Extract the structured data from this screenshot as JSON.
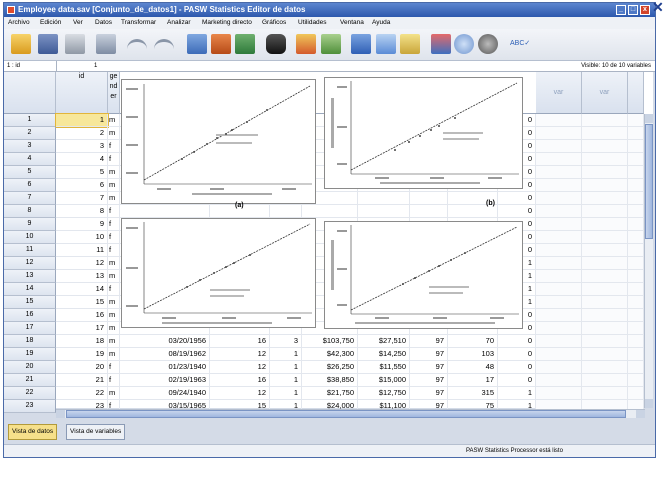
{
  "window": {
    "title": "Employee data.sav [Conjunto_de_datos1] - PASW Statistics Editor de datos"
  },
  "menu": [
    "Archivo",
    "Edición",
    "Ver",
    "Datos",
    "Transformar",
    "Analizar",
    "Marketing directo",
    "Gráficos",
    "Utilidades",
    "Ventana",
    "Ayuda"
  ],
  "cellbar": {
    "ref": "1 : id",
    "value": "1",
    "visible": "Visible: 10 de 10 variables"
  },
  "columns": {
    "id": "id",
    "gender": "ge nd er",
    "var1": "var",
    "var2": "var"
  },
  "rows": [
    {
      "n": "1",
      "id": "1",
      "g": "m",
      "l": "0"
    },
    {
      "n": "2",
      "id": "2",
      "g": "m",
      "l": "0"
    },
    {
      "n": "3",
      "id": "3",
      "g": "f",
      "l": "0"
    },
    {
      "n": "4",
      "id": "4",
      "g": "f",
      "l": "0"
    },
    {
      "n": "5",
      "id": "5",
      "g": "m",
      "l": "0"
    },
    {
      "n": "6",
      "id": "6",
      "g": "m",
      "l": "0"
    },
    {
      "n": "7",
      "id": "7",
      "g": "m",
      "l": "0"
    },
    {
      "n": "8",
      "id": "8",
      "g": "f",
      "l": "0"
    },
    {
      "n": "9",
      "id": "9",
      "g": "f",
      "l": "0"
    },
    {
      "n": "10",
      "id": "10",
      "g": "f",
      "l": "0"
    },
    {
      "n": "11",
      "id": "11",
      "g": "f",
      "l": "0"
    },
    {
      "n": "12",
      "id": "12",
      "g": "m",
      "l": "1"
    },
    {
      "n": "13",
      "id": "13",
      "g": "m",
      "l": "1"
    },
    {
      "n": "14",
      "id": "14",
      "g": "f",
      "l": "1"
    },
    {
      "n": "15",
      "id": "15",
      "g": "m",
      "l": "1"
    },
    {
      "n": "16",
      "id": "16",
      "g": "m",
      "l": "0"
    },
    {
      "n": "17",
      "id": "17",
      "g": "m",
      "l": "0"
    },
    {
      "n": "18",
      "id": "18",
      "g": "m",
      "bdate": "03/20/1956",
      "educ": "16",
      "jobcat": "3",
      "salary": "$103,750",
      "salbegin": "$27,510",
      "jobtime": "97",
      "prevexp": "70",
      "minority": "0"
    },
    {
      "n": "19",
      "id": "19",
      "g": "m",
      "bdate": "08/19/1962",
      "educ": "12",
      "jobcat": "1",
      "salary": "$42,300",
      "salbegin": "$14,250",
      "jobtime": "97",
      "prevexp": "103",
      "minority": "0"
    },
    {
      "n": "20",
      "id": "20",
      "g": "f",
      "bdate": "01/23/1940",
      "educ": "12",
      "jobcat": "1",
      "salary": "$26,250",
      "salbegin": "$11,550",
      "jobtime": "97",
      "prevexp": "48",
      "minority": "0"
    },
    {
      "n": "21",
      "id": "21",
      "g": "f",
      "bdate": "02/19/1963",
      "educ": "16",
      "jobcat": "1",
      "salary": "$38,850",
      "salbegin": "$15,000",
      "jobtime": "97",
      "prevexp": "17",
      "minority": "0"
    },
    {
      "n": "22",
      "id": "22",
      "g": "m",
      "bdate": "09/24/1940",
      "educ": "12",
      "jobcat": "1",
      "salary": "$21,750",
      "salbegin": "$12,750",
      "jobtime": "97",
      "prevexp": "315",
      "minority": "1"
    },
    {
      "n": "23",
      "id": "23",
      "g": "f",
      "bdate": "03/15/1965",
      "educ": "15",
      "jobcat": "1",
      "salary": "$24,000",
      "salbegin": "$11,100",
      "jobtime": "97",
      "prevexp": "75",
      "minority": "1"
    }
  ],
  "charts": {
    "a": {
      "caption": "(a)"
    },
    "b": {
      "caption": "(b)"
    }
  },
  "tabs": {
    "data_view": "Vista de datos",
    "variable_view": "Vista de variables"
  },
  "status": {
    "processor": "PASW Statistics Processor está listo"
  }
}
